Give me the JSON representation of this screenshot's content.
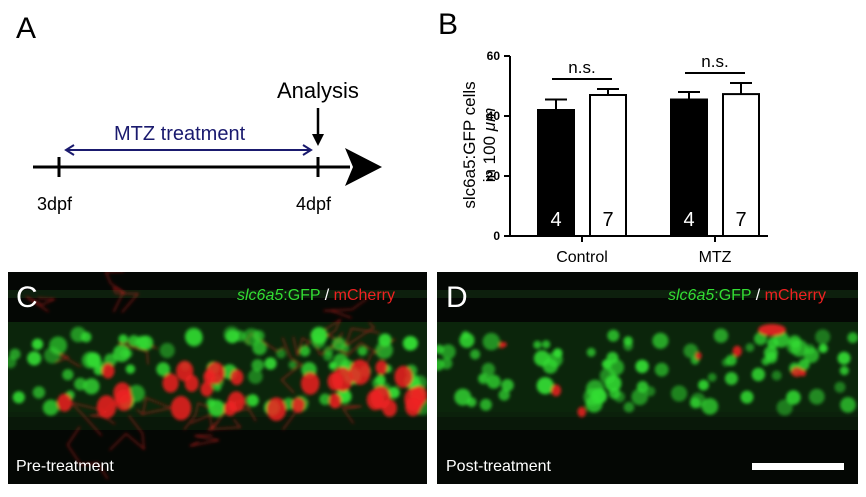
{
  "panel_a": {
    "letter": "A",
    "analysis_label": "Analysis",
    "treatment_label": "MTZ treatment",
    "start_label": "3dpf",
    "end_label": "4dpf",
    "treatment_color": "#1a1a6e"
  },
  "panel_b": {
    "letter": "B",
    "ylabel_line1": "slc6a5:GFP cells",
    "ylabel_line2_prefix": "in 100 ",
    "ylabel_line2_unit": "μm",
    "sig_label_control": "n.s.",
    "sig_label_mtz": "n.s."
  },
  "chart_data": {
    "type": "bar",
    "categories": [
      "Control",
      "MTZ"
    ],
    "ylim": [
      0,
      60
    ],
    "yticks": [
      "0",
      "20",
      "40",
      "60"
    ],
    "series": [
      {
        "fill": "#000000",
        "values": [
          42,
          45.5
        ],
        "errors": [
          3.5,
          2.5
        ],
        "n": [
          "4",
          "4"
        ]
      },
      {
        "fill": "#ffffff",
        "values": [
          47,
          47.3
        ],
        "errors": [
          2.0,
          3.7
        ],
        "n": [
          "7",
          "7"
        ]
      }
    ]
  },
  "panel_c": {
    "letter": "C",
    "legend_gene": "slc6a5",
    "legend_gfp": ":GFP",
    "legend_slash": " / ",
    "legend_mcherry": "mCherry",
    "caption": "Pre-treatment"
  },
  "panel_d": {
    "letter": "D",
    "legend_gene": "slc6a5",
    "legend_gfp": ":GFP",
    "legend_slash": " / ",
    "legend_mcherry": "mCherry",
    "caption": "Post-treatment"
  },
  "colors": {
    "gfp_green": "#33dd33",
    "mcherry_red": "#ee2222",
    "background_dark": "#050805"
  }
}
